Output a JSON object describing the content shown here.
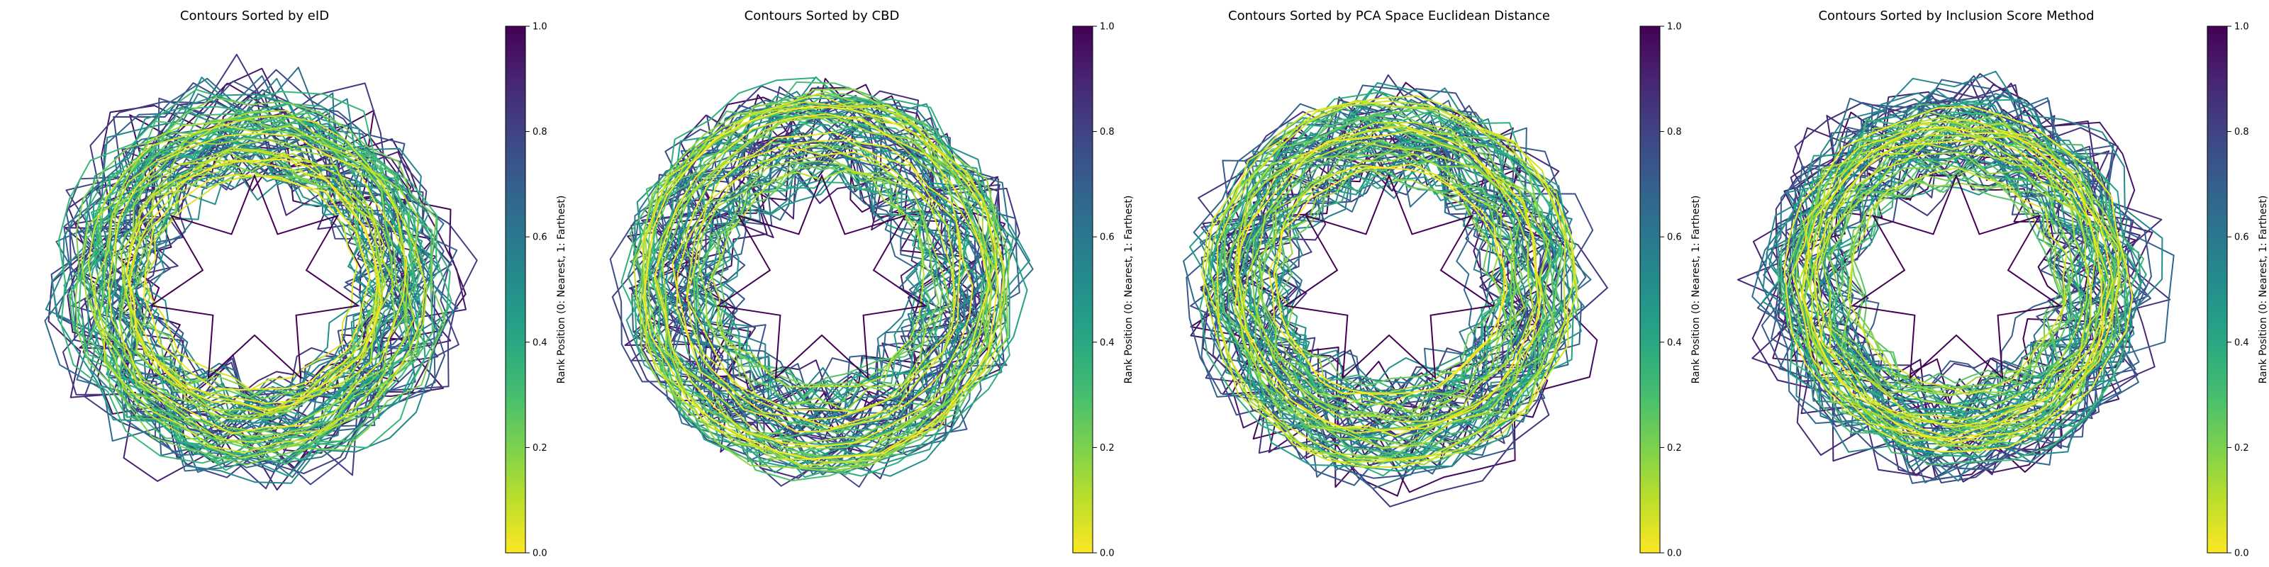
{
  "chart_data": [
    {
      "type": "line",
      "title": "Contours Sorted by eID",
      "colorbar": {
        "label": "Rank Position (0: Nearest, 1: Farthest)",
        "ticks": [
          "0.0",
          "0.2",
          "0.4",
          "0.6",
          "0.8",
          "1.0"
        ],
        "range": [
          0,
          1
        ],
        "colormap": "viridis_r"
      },
      "contour_count": 80,
      "seed": 11
    },
    {
      "type": "line",
      "title": "Contours Sorted by CBD",
      "colorbar": {
        "label": "Rank Position (0: Nearest, 1: Farthest)",
        "ticks": [
          "0.0",
          "0.2",
          "0.4",
          "0.6",
          "0.8",
          "1.0"
        ],
        "range": [
          0,
          1
        ],
        "colormap": "viridis_r"
      },
      "contour_count": 80,
      "seed": 23
    },
    {
      "type": "line",
      "title": "Contours Sorted by PCA Space Euclidean Distance",
      "colorbar": {
        "label": "Rank Position (0: Nearest, 1: Farthest)",
        "ticks": [
          "0.0",
          "0.2",
          "0.4",
          "0.6",
          "0.8",
          "1.0"
        ],
        "range": [
          0,
          1
        ],
        "colormap": "viridis_r"
      },
      "contour_count": 80,
      "seed": 37
    },
    {
      "type": "line",
      "title": "Contours Sorted by Inclusion Score Method",
      "colorbar": {
        "label": "Rank Position (0: Nearest, 1: Farthest)",
        "ticks": [
          "0.0",
          "0.2",
          "0.4",
          "0.6",
          "0.8",
          "1.0"
        ],
        "range": [
          0,
          1
        ],
        "colormap": "viridis_r"
      },
      "contour_count": 80,
      "seed": 53
    }
  ]
}
